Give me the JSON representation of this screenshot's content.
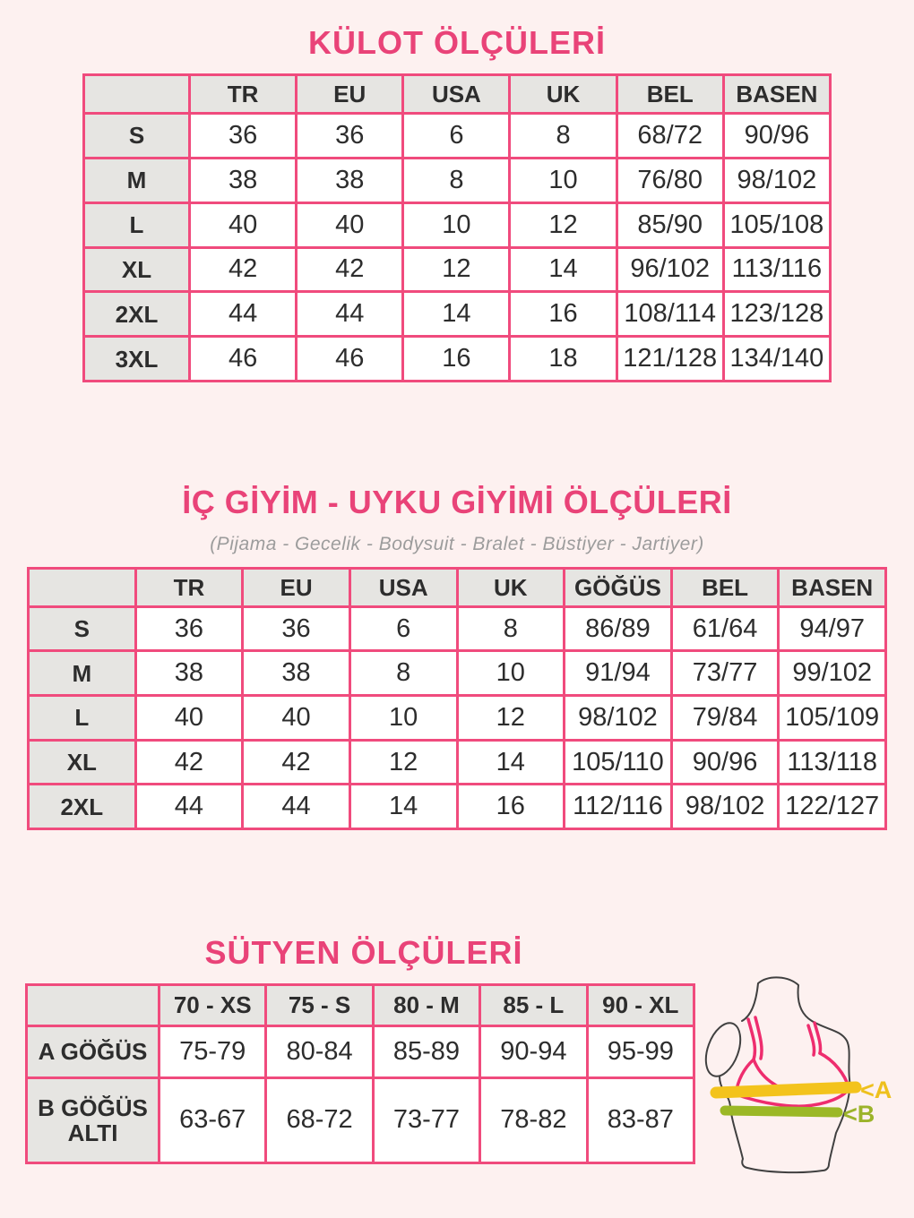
{
  "colors": {
    "page_bg": "#fdf1f0",
    "title_pink": "#e94378",
    "table_border_pink": "#f04b7d",
    "header_cell_bg": "#e6e5e2",
    "data_cell_bg": "#ffffff",
    "text_dark": "#2d2d2d",
    "subtitle_gray": "#9c9c9c",
    "bra_pink": "#ee2d6e",
    "torso_outline": "#404040",
    "bust_band_yellow": "#f3c31c",
    "underbust_band_green": "#9bb826"
  },
  "sections": {
    "kulot": {
      "title": "KÜLOT ÖLÇÜLERİ",
      "table": {
        "columns": [
          "",
          "TR",
          "EU",
          "USA",
          "UK",
          "BEL",
          "BASEN"
        ],
        "rows": [
          {
            "label": "S",
            "values": [
              "36",
              "36",
              "6",
              "8",
              "68/72",
              "90/96"
            ]
          },
          {
            "label": "M",
            "values": [
              "38",
              "38",
              "8",
              "10",
              "76/80",
              "98/102"
            ]
          },
          {
            "label": "L",
            "values": [
              "40",
              "40",
              "10",
              "12",
              "85/90",
              "105/108"
            ]
          },
          {
            "label": "XL",
            "values": [
              "42",
              "42",
              "12",
              "14",
              "96/102",
              "113/116"
            ]
          },
          {
            "label": "2XL",
            "values": [
              "44",
              "44",
              "14",
              "16",
              "108/114",
              "123/128"
            ]
          },
          {
            "label": "3XL",
            "values": [
              "46",
              "46",
              "16",
              "18",
              "121/128",
              "134/140"
            ]
          }
        ]
      }
    },
    "icgiyim": {
      "title": "İÇ GİYİM - UYKU GİYİMİ ÖLÇÜLERİ",
      "subtitle": "(Pijama - Gecelik - Bodysuit - Bralet - Büstiyer - Jartiyer)",
      "table": {
        "columns": [
          "",
          "TR",
          "EU",
          "USA",
          "UK",
          "GÖĞÜS",
          "BEL",
          "BASEN"
        ],
        "rows": [
          {
            "label": "S",
            "values": [
              "36",
              "36",
              "6",
              "8",
              "86/89",
              "61/64",
              "94/97"
            ]
          },
          {
            "label": "M",
            "values": [
              "38",
              "38",
              "8",
              "10",
              "91/94",
              "73/77",
              "99/102"
            ]
          },
          {
            "label": "L",
            "values": [
              "40",
              "40",
              "10",
              "12",
              "98/102",
              "79/84",
              "105/109"
            ]
          },
          {
            "label": "XL",
            "values": [
              "42",
              "42",
              "12",
              "14",
              "105/110",
              "90/96",
              "113/118"
            ]
          },
          {
            "label": "2XL",
            "values": [
              "44",
              "44",
              "14",
              "16",
              "112/116",
              "98/102",
              "122/127"
            ]
          }
        ]
      }
    },
    "sutyen": {
      "title": "SÜTYEN ÖLÇÜLERİ",
      "table": {
        "columns": [
          "",
          "70 - XS",
          "75 - S",
          "80 - M",
          "85 - L",
          "90 - XL"
        ],
        "rows": [
          {
            "label": "A GÖĞÜS",
            "values": [
              "75-79",
              "80-84",
              "85-89",
              "90-94",
              "95-99"
            ]
          },
          {
            "label": "B GÖĞÜS ALTI",
            "values": [
              "63-67",
              "68-72",
              "73-77",
              "78-82",
              "83-87"
            ]
          }
        ]
      },
      "diagram": {
        "bust_label": "<A",
        "underbust_label": "<B"
      }
    }
  }
}
